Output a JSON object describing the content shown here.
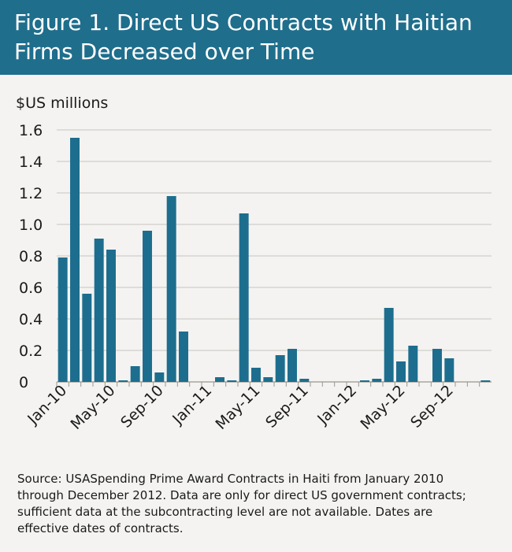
{
  "header": {
    "title_line1": "Figure 1. Direct US Contracts with Haitian",
    "title_line2": "Firms Decreased over Time"
  },
  "colors": {
    "header_bg": "#1f6e8c",
    "bar": "#1d6e8e",
    "background": "#f4f3f1",
    "grid": "#c8c6c0"
  },
  "chart_data": {
    "type": "bar",
    "ylabel": "$US millions",
    "ylim": [
      0,
      1.6
    ],
    "yticks": [
      "0",
      "0.2",
      "0.4",
      "0.6",
      "0.8",
      "1.0",
      "1.2",
      "1.4",
      "1.6"
    ],
    "xtick_labels": [
      "Jan-10",
      "May-10",
      "Sep-10",
      "Jan-11",
      "May-11",
      "Sep-11",
      "Jan-12",
      "May-12",
      "Sep-12"
    ],
    "grid": true,
    "categories": [
      "Jan-10",
      "Feb-10",
      "Mar-10",
      "Apr-10",
      "May-10",
      "Jun-10",
      "Jul-10",
      "Aug-10",
      "Sep-10",
      "Oct-10",
      "Nov-10",
      "Dec-10",
      "Jan-11",
      "Feb-11",
      "Mar-11",
      "Apr-11",
      "May-11",
      "Jun-11",
      "Jul-11",
      "Aug-11",
      "Sep-11",
      "Oct-11",
      "Nov-11",
      "Dec-11",
      "Jan-12",
      "Feb-12",
      "Mar-12",
      "Apr-12",
      "May-12",
      "Jun-12",
      "Jul-12",
      "Aug-12",
      "Sep-12",
      "Oct-12",
      "Nov-12",
      "Dec-12"
    ],
    "values": [
      0.79,
      1.55,
      0.56,
      0.91,
      0.84,
      0.01,
      0.1,
      0.96,
      0.06,
      1.18,
      0.32,
      0,
      0,
      0.03,
      0.01,
      1.07,
      0.09,
      0.03,
      0.17,
      0.21,
      0.02,
      0,
      0,
      0,
      0,
      0.01,
      0.02,
      0.47,
      0.13,
      0.23,
      0,
      0.21,
      0.15,
      0,
      0,
      0.01
    ]
  },
  "caption": {
    "line1": "Source: USASpending Prime Award Contracts in Haiti from January 2010",
    "line2": "through December 2012. Data are only for direct US government contracts;",
    "line3": "sufficient data at the subcontracting level are not available. Dates are",
    "line4": "effective dates of contracts."
  }
}
